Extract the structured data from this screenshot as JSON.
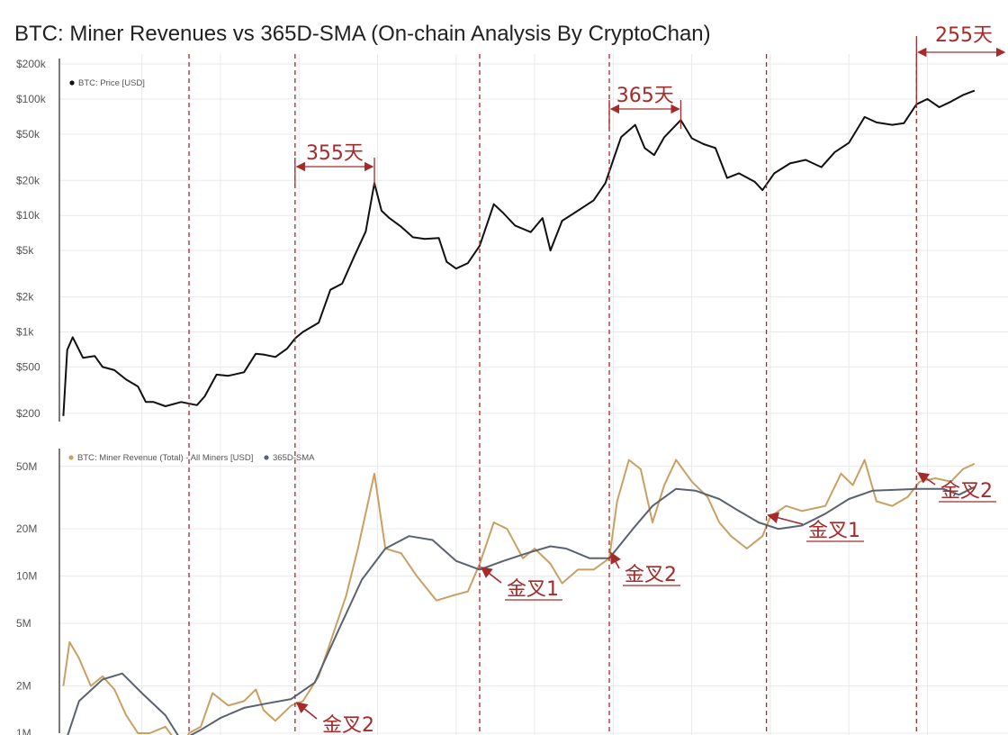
{
  "title": "BTC: Miner Revenues vs 365D-SMA (On-chain Analysis By CryptoChan)",
  "colors": {
    "price": "#111111",
    "revenue": "#c9a063",
    "sma": "#5a6270",
    "annotation": "#a52a2a",
    "grid": "#e9e9e9"
  },
  "chart_data": [
    {
      "type": "line",
      "yscale": "log",
      "ylim": [
        170,
        200000
      ],
      "yticks": [
        {
          "value": 200000,
          "label": "$200k"
        },
        {
          "value": 100000,
          "label": "$100k"
        },
        {
          "value": 50000,
          "label": "$50k"
        },
        {
          "value": 20000,
          "label": "$20k"
        },
        {
          "value": 10000,
          "label": "$10k"
        },
        {
          "value": 5000,
          "label": "$5k"
        },
        {
          "value": 2000,
          "label": "$2k"
        },
        {
          "value": 1000,
          "label": "$1k"
        },
        {
          "value": 500,
          "label": "$500"
        },
        {
          "value": 200,
          "label": "$200"
        }
      ],
      "series": [
        {
          "name": "BTC: Price [USD]",
          "points": [
            [
              2014.0,
              190
            ],
            [
              2014.05,
              700
            ],
            [
              2014.12,
              900
            ],
            [
              2014.25,
              600
            ],
            [
              2014.4,
              620
            ],
            [
              2014.5,
              500
            ],
            [
              2014.65,
              470
            ],
            [
              2014.8,
              390
            ],
            [
              2014.95,
              340
            ],
            [
              2015.05,
              250
            ],
            [
              2015.15,
              250
            ],
            [
              2015.3,
              230
            ],
            [
              2015.5,
              250
            ],
            [
              2015.7,
              235
            ],
            [
              2015.8,
              280
            ],
            [
              2015.95,
              430
            ],
            [
              2016.1,
              420
            ],
            [
              2016.3,
              450
            ],
            [
              2016.45,
              650
            ],
            [
              2016.55,
              640
            ],
            [
              2016.7,
              610
            ],
            [
              2016.85,
              720
            ],
            [
              2016.95,
              880
            ],
            [
              2017.05,
              1000
            ],
            [
              2017.25,
              1200
            ],
            [
              2017.4,
              2300
            ],
            [
              2017.55,
              2600
            ],
            [
              2017.7,
              4400
            ],
            [
              2017.85,
              7300
            ],
            [
              2017.96,
              19000
            ],
            [
              2018.05,
              11000
            ],
            [
              2018.15,
              9500
            ],
            [
              2018.3,
              8000
            ],
            [
              2018.45,
              6500
            ],
            [
              2018.6,
              6300
            ],
            [
              2018.78,
              6400
            ],
            [
              2018.88,
              4000
            ],
            [
              2019.0,
              3500
            ],
            [
              2019.15,
              3900
            ],
            [
              2019.3,
              5500
            ],
            [
              2019.48,
              12500
            ],
            [
              2019.6,
              10500
            ],
            [
              2019.75,
              8200
            ],
            [
              2019.95,
              7200
            ],
            [
              2020.1,
              9500
            ],
            [
              2020.2,
              5000
            ],
            [
              2020.35,
              9000
            ],
            [
              2020.55,
              11000
            ],
            [
              2020.75,
              13500
            ],
            [
              2020.9,
              19000
            ],
            [
              2021.0,
              30000
            ],
            [
              2021.1,
              47000
            ],
            [
              2021.28,
              60000
            ],
            [
              2021.4,
              38000
            ],
            [
              2021.52,
              33000
            ],
            [
              2021.65,
              47000
            ],
            [
              2021.86,
              66000
            ],
            [
              2022.0,
              46000
            ],
            [
              2022.15,
              41000
            ],
            [
              2022.3,
              38000
            ],
            [
              2022.45,
              21000
            ],
            [
              2022.6,
              23000
            ],
            [
              2022.8,
              19500
            ],
            [
              2022.9,
              16500
            ],
            [
              2023.05,
              23000
            ],
            [
              2023.25,
              28000
            ],
            [
              2023.45,
              30000
            ],
            [
              2023.65,
              26000
            ],
            [
              2023.82,
              35000
            ],
            [
              2024.0,
              42000
            ],
            [
              2024.2,
              70000
            ],
            [
              2024.35,
              63000
            ],
            [
              2024.55,
              60000
            ],
            [
              2024.7,
              62000
            ],
            [
              2024.86,
              90000
            ],
            [
              2025.0,
              100000
            ],
            [
              2025.15,
              85000
            ],
            [
              2025.3,
              95000
            ],
            [
              2025.45,
              108000
            ],
            [
              2025.6,
              118000
            ]
          ]
        }
      ]
    },
    {
      "type": "line",
      "yscale": "log",
      "ylim": [
        1000000,
        60000000
      ],
      "yticks": [
        {
          "value": 50000000,
          "label": "50M"
        },
        {
          "value": 20000000,
          "label": "20M"
        },
        {
          "value": 10000000,
          "label": "10M"
        },
        {
          "value": 5000000,
          "label": "5M"
        },
        {
          "value": 2000000,
          "label": "2M"
        },
        {
          "value": 1000000,
          "label": "1M"
        }
      ],
      "series": [
        {
          "name": "BTC: Miner Revenue (Total) - All Miners [USD]",
          "points": [
            [
              2014.0,
              2000000
            ],
            [
              2014.08,
              3800000
            ],
            [
              2014.2,
              3000000
            ],
            [
              2014.35,
              2000000
            ],
            [
              2014.5,
              2300000
            ],
            [
              2014.65,
              1900000
            ],
            [
              2014.8,
              1300000
            ],
            [
              2014.95,
              1000000
            ],
            [
              2015.1,
              1000000
            ],
            [
              2015.3,
              1100000
            ],
            [
              2015.5,
              800000
            ],
            [
              2015.6,
              1000000
            ],
            [
              2015.75,
              1100000
            ],
            [
              2015.9,
              1800000
            ],
            [
              2016.1,
              1500000
            ],
            [
              2016.3,
              1600000
            ],
            [
              2016.45,
              1900000
            ],
            [
              2016.55,
              1400000
            ],
            [
              2016.7,
              1200000
            ],
            [
              2016.9,
              1500000
            ],
            [
              2017.05,
              1600000
            ],
            [
              2017.25,
              2300000
            ],
            [
              2017.4,
              3800000
            ],
            [
              2017.6,
              7500000
            ],
            [
              2017.75,
              15000000
            ],
            [
              2017.96,
              45000000
            ],
            [
              2018.1,
              15000000
            ],
            [
              2018.3,
              14000000
            ],
            [
              2018.5,
              10000000
            ],
            [
              2018.75,
              7000000
            ],
            [
              2018.95,
              7500000
            ],
            [
              2019.15,
              8000000
            ],
            [
              2019.3,
              12000000
            ],
            [
              2019.48,
              22000000
            ],
            [
              2019.65,
              20000000
            ],
            [
              2019.85,
              13000000
            ],
            [
              2020.0,
              15000000
            ],
            [
              2020.2,
              12000000
            ],
            [
              2020.35,
              9000000
            ],
            [
              2020.55,
              11000000
            ],
            [
              2020.75,
              11000000
            ],
            [
              2020.95,
              13000000
            ],
            [
              2021.05,
              30000000
            ],
            [
              2021.2,
              55000000
            ],
            [
              2021.35,
              48000000
            ],
            [
              2021.5,
              22000000
            ],
            [
              2021.65,
              38000000
            ],
            [
              2021.8,
              55000000
            ],
            [
              2022.0,
              40000000
            ],
            [
              2022.2,
              32000000
            ],
            [
              2022.35,
              22000000
            ],
            [
              2022.5,
              18000000
            ],
            [
              2022.7,
              15000000
            ],
            [
              2022.9,
              18000000
            ],
            [
              2023.0,
              24000000
            ],
            [
              2023.2,
              28000000
            ],
            [
              2023.4,
              26000000
            ],
            [
              2023.55,
              27000000
            ],
            [
              2023.7,
              28000000
            ],
            [
              2023.9,
              45000000
            ],
            [
              2024.05,
              38000000
            ],
            [
              2024.2,
              55000000
            ],
            [
              2024.35,
              30000000
            ],
            [
              2024.55,
              28000000
            ],
            [
              2024.75,
              32000000
            ],
            [
              2024.9,
              40000000
            ],
            [
              2025.1,
              42000000
            ],
            [
              2025.3,
              40000000
            ],
            [
              2025.45,
              48000000
            ],
            [
              2025.6,
              52000000
            ]
          ]
        },
        {
          "name": "365D-SMA",
          "points": [
            [
              2014.0,
              800000
            ],
            [
              2014.2,
              1600000
            ],
            [
              2014.5,
              2200000
            ],
            [
              2014.75,
              2400000
            ],
            [
              2015.0,
              1800000
            ],
            [
              2015.3,
              1300000
            ],
            [
              2015.5,
              900000
            ],
            [
              2015.75,
              1050000
            ],
            [
              2016.0,
              1250000
            ],
            [
              2016.3,
              1450000
            ],
            [
              2016.6,
              1550000
            ],
            [
              2016.9,
              1650000
            ],
            [
              2017.2,
              2100000
            ],
            [
              2017.5,
              4500000
            ],
            [
              2017.8,
              9500000
            ],
            [
              2018.1,
              15000000
            ],
            [
              2018.4,
              18000000
            ],
            [
              2018.7,
              17000000
            ],
            [
              2019.0,
              12500000
            ],
            [
              2019.3,
              11000000
            ],
            [
              2019.6,
              12500000
            ],
            [
              2019.9,
              14000000
            ],
            [
              2020.2,
              15500000
            ],
            [
              2020.4,
              15000000
            ],
            [
              2020.7,
              13000000
            ],
            [
              2020.95,
              13000000
            ],
            [
              2021.25,
              20000000
            ],
            [
              2021.5,
              28000000
            ],
            [
              2021.8,
              36000000
            ],
            [
              2022.05,
              35000000
            ],
            [
              2022.35,
              31000000
            ],
            [
              2022.6,
              26000000
            ],
            [
              2022.85,
              22000000
            ],
            [
              2023.1,
              20000000
            ],
            [
              2023.4,
              21000000
            ],
            [
              2023.7,
              25000000
            ],
            [
              2024.0,
              31000000
            ],
            [
              2024.3,
              35000000
            ],
            [
              2024.6,
              35500000
            ],
            [
              2024.9,
              36000000
            ],
            [
              2025.2,
              36000000
            ],
            [
              2025.4,
              33000000
            ],
            [
              2025.6,
              37000000
            ]
          ]
        }
      ]
    }
  ],
  "annotations": {
    "spans": [
      {
        "label": "355天",
        "from": 2016.95,
        "to": 2017.96
      },
      {
        "label": "365天",
        "from": 2020.95,
        "to": 2021.86
      },
      {
        "label": "255天",
        "from": 2024.86,
        "to": 2025.6
      }
    ],
    "crosses": [
      {
        "label": "金叉2",
        "x": 2016.95
      },
      {
        "label": "金叉1",
        "x": 2019.3
      },
      {
        "label": "金叉2",
        "x": 2020.95
      },
      {
        "label": "金叉1",
        "x": 2022.95
      },
      {
        "label": "金叉2",
        "x": 2024.86
      }
    ],
    "markers": [
      2015.6,
      2016.95,
      2019.3,
      2020.95,
      2022.95,
      2024.86
    ]
  }
}
